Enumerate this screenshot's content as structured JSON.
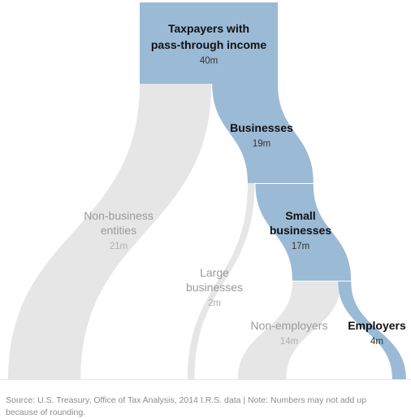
{
  "chart_data": {
    "type": "sankey",
    "unit": "m",
    "nodes": [
      {
        "id": "taxpayers",
        "label_lines": [
          "Taxpayers with",
          "pass-through income"
        ],
        "value": 40,
        "value_label": "40m",
        "color": "#9bbad6"
      },
      {
        "id": "businesses",
        "label_lines": [
          "Businesses"
        ],
        "value": 19,
        "value_label": "19m",
        "color": "#9bbad6"
      },
      {
        "id": "non_business",
        "label_lines": [
          "Non-business",
          "entities"
        ],
        "value": 21,
        "value_label": "21m",
        "color": "#e6e6e6"
      },
      {
        "id": "small",
        "label_lines": [
          "Small",
          "businesses"
        ],
        "value": 17,
        "value_label": "17m",
        "color": "#9bbad6"
      },
      {
        "id": "large",
        "label_lines": [
          "Large",
          "businesses"
        ],
        "value": 2,
        "value_label": "2m",
        "color": "#e6e6e6"
      },
      {
        "id": "non_employers",
        "label_lines": [
          "Non-employers"
        ],
        "value": 14,
        "value_label": "14m",
        "color": "#e6e6e6"
      },
      {
        "id": "employers",
        "label_lines": [
          "Employers"
        ],
        "value": 4,
        "value_label": "4m",
        "color": "#9bbad6"
      }
    ],
    "links": [
      {
        "source": "taxpayers",
        "target": "non_business",
        "value": 21
      },
      {
        "source": "taxpayers",
        "target": "businesses",
        "value": 19
      },
      {
        "source": "businesses",
        "target": "large",
        "value": 2
      },
      {
        "source": "businesses",
        "target": "small",
        "value": 17
      },
      {
        "source": "small",
        "target": "non_employers",
        "value": 14
      },
      {
        "source": "small",
        "target": "employers",
        "value": 4
      }
    ]
  },
  "source_note": "Source: U.S. Treasury, Office of Tax Analysis, 2014 I.R.S. data | Note: Numbers may not add up because of rounding."
}
